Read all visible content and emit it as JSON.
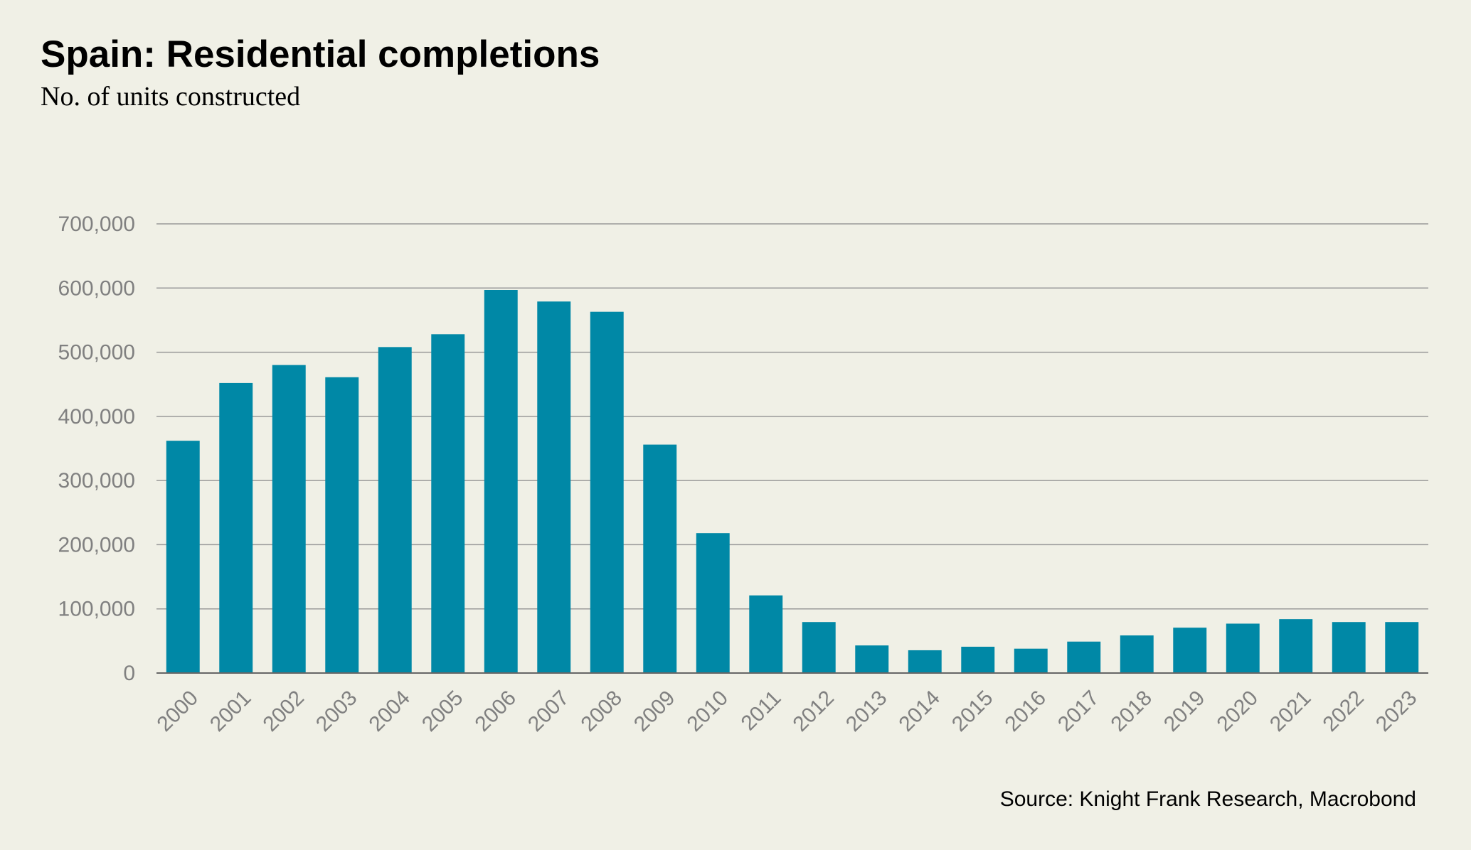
{
  "chart_data": {
    "type": "bar",
    "title": "Spain: Residential completions",
    "subtitle": "No. of units constructed",
    "source": "Source: Knight Frank Research, Macrobond",
    "categories": [
      "2000",
      "2001",
      "2002",
      "2003",
      "2004",
      "2005",
      "2006",
      "2007",
      "2008",
      "2009",
      "2010",
      "2011",
      "2012",
      "2013",
      "2014",
      "2015",
      "2016",
      "2017",
      "2018",
      "2019",
      "2020",
      "2021",
      "2022",
      "2023"
    ],
    "values": [
      362000,
      452000,
      480000,
      461000,
      508000,
      528000,
      597000,
      579000,
      563000,
      356000,
      218000,
      121000,
      79500,
      43000,
      35500,
      41000,
      38000,
      49000,
      58600,
      70700,
      77000,
      84000,
      79500,
      79500
    ],
    "ylim": [
      0,
      700000
    ],
    "yticks": [
      "0",
      "100,000",
      "200,000",
      "300,000",
      "400,000",
      "500,000",
      "600,000",
      "700,000"
    ],
    "grid": true,
    "bar_color": "#0088a6"
  }
}
